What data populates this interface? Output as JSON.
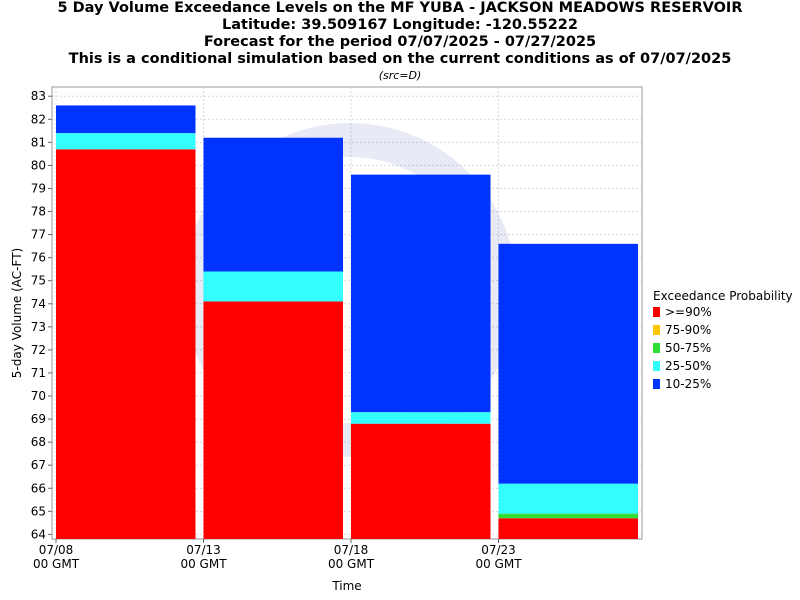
{
  "chart_data": {
    "type": "bar",
    "stacked": true,
    "title_lines": [
      "5 Day Volume Exceedance Levels on the MF YUBA - JACKSON MEADOWS RESERVOIR",
      "Latitude: 39.509167 Longitude: -120.55222",
      "Forecast for the period 07/07/2025 - 07/27/2025",
      "This is a conditional simulation based on the current conditions as of 07/07/2025"
    ],
    "subtitle": "(src=D)",
    "xlabel": "Time",
    "ylabel": "5-day Volume (AC-FT)",
    "ylim": [
      63.8,
      83.4
    ],
    "yticks": [
      64,
      65,
      66,
      67,
      68,
      69,
      70,
      71,
      72,
      73,
      74,
      75,
      76,
      77,
      78,
      79,
      80,
      81,
      82,
      83
    ],
    "xticks": [
      {
        "line1": "07/08",
        "line2": "00 GMT"
      },
      {
        "line1": "07/13",
        "line2": "00 GMT"
      },
      {
        "line1": "07/18",
        "line2": "00 GMT"
      },
      {
        "line1": "07/23",
        "line2": "00 GMT"
      }
    ],
    "grid": true,
    "legend_title": "Exceedance Probability",
    "legend_position": "right",
    "legend": [
      {
        "label": ">=90%",
        "color": "#ff0000"
      },
      {
        "label": "75-90%",
        "color": "#ffc800"
      },
      {
        "label": "50-75%",
        "color": "#33dd33"
      },
      {
        "label": "25-50%",
        "color": "#33ffff"
      },
      {
        "label": "10-25%",
        "color": "#0033ff"
      }
    ],
    "bars": [
      {
        "x": "07/08",
        "levels": {
          ">=90%": 80.7,
          "75-90%": 80.7,
          "50-75%": 80.7,
          "25-50%": 81.4,
          "10-25%": 82.6
        }
      },
      {
        "x": "07/13",
        "levels": {
          ">=90%": 74.1,
          "75-90%": 74.1,
          "50-75%": 74.1,
          "25-50%": 75.4,
          "10-25%": 81.2
        }
      },
      {
        "x": "07/18",
        "levels": {
          ">=90%": 68.8,
          "75-90%": 68.8,
          "50-75%": 68.8,
          "25-50%": 69.3,
          "10-25%": 79.6
        }
      },
      {
        "x": "07/23",
        "levels": {
          ">=90%": 64.7,
          "75-90%": 64.7,
          "50-75%": 64.9,
          "25-50%": 66.2,
          "10-25%": 76.6
        }
      }
    ]
  }
}
